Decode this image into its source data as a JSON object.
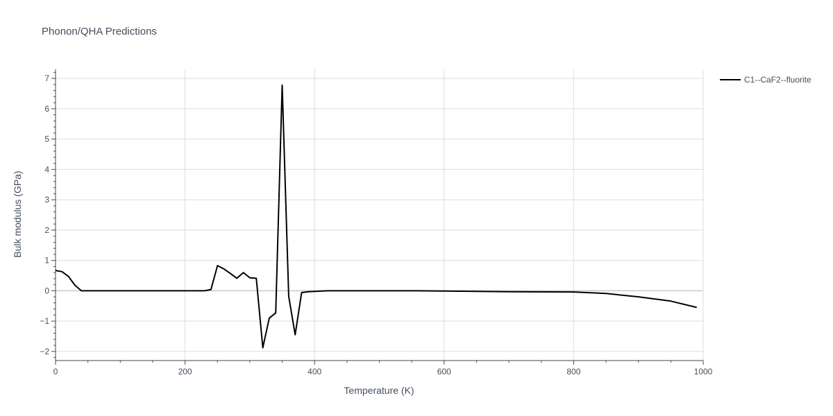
{
  "chart_data": {
    "type": "line",
    "title": "Phonon/QHA Predictions",
    "xlabel": "Temperature (K)",
    "ylabel": "Bulk modulus (GPa)",
    "xlim": [
      0,
      1000
    ],
    "ylim": [
      -2.3,
      7.3
    ],
    "xticks": [
      0,
      200,
      400,
      600,
      800,
      1000
    ],
    "yticks": [
      -2,
      -1,
      0,
      1,
      2,
      3,
      4,
      5,
      6,
      7
    ],
    "grid": true,
    "legend_position": "top-right",
    "series": [
      {
        "name": "C1--CaF2--fluorite",
        "color": "#000000",
        "x": [
          0,
          10,
          20,
          30,
          40,
          50,
          100,
          150,
          200,
          230,
          240,
          250,
          260,
          270,
          280,
          290,
          300,
          310,
          320,
          330,
          340,
          350,
          360,
          370,
          380,
          390,
          420,
          500,
          560,
          600,
          700,
          800,
          850,
          900,
          950,
          990
        ],
        "y": [
          0.67,
          0.63,
          0.47,
          0.18,
          0.0,
          0.0,
          0.0,
          0.0,
          0.0,
          0.0,
          0.04,
          0.83,
          0.72,
          0.57,
          0.41,
          0.6,
          0.43,
          0.41,
          -1.88,
          -0.9,
          -0.73,
          6.78,
          -0.18,
          -1.45,
          -0.06,
          -0.03,
          0.0,
          0.0,
          0.0,
          -0.01,
          -0.03,
          -0.04,
          -0.09,
          -0.2,
          -0.34,
          -0.55
        ]
      }
    ]
  }
}
